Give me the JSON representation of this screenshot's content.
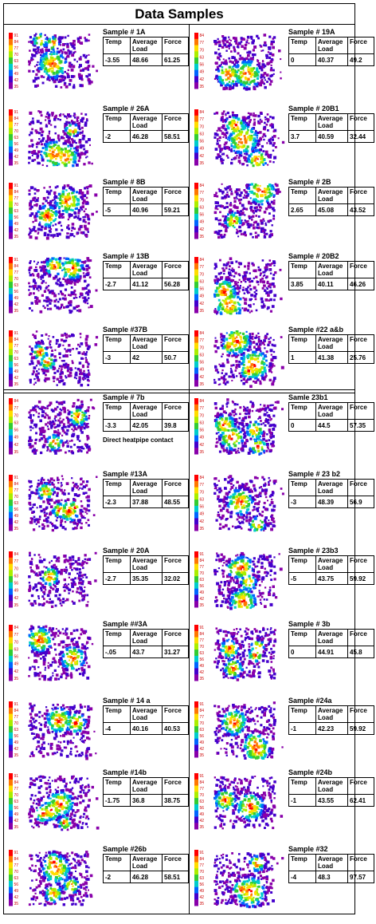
{
  "title": "Data Samples",
  "headers": {
    "temp": "Temp",
    "load": "Average Load",
    "force": "Force"
  },
  "samples": [
    {
      "name": "Sample # 1A",
      "temp": "-3.55",
      "load": "48.66",
      "force": "61.25",
      "scale": [
        "91",
        "84",
        "77",
        "70",
        "63",
        "56",
        "49",
        "42",
        "35"
      ]
    },
    {
      "name": "Sample # 19A",
      "temp": "0",
      "load": "40.37",
      "force": "49.2",
      "scale": [
        "84",
        "77",
        "70",
        "63",
        "56",
        "49",
        "42",
        "35"
      ]
    },
    {
      "name": "Sample # 26A",
      "temp": "-2",
      "load": "46.28",
      "force": "58.51",
      "scale": [
        "91",
        "84",
        "77",
        "70",
        "63",
        "56",
        "49",
        "42",
        "35"
      ]
    },
    {
      "name": "Sample # 20B1",
      "temp": "3.7",
      "load": "40.59",
      "force": "32.44",
      "scale": [
        "84",
        "77",
        "70",
        "63",
        "56",
        "49",
        "42",
        "35"
      ]
    },
    {
      "name": "Sample # 8B",
      "temp": "-5",
      "load": "40.96",
      "force": "59.21",
      "scale": [
        "91",
        "84",
        "77",
        "70",
        "63",
        "56",
        "49",
        "42",
        "35"
      ]
    },
    {
      "name": "Sample # 2B",
      "temp": "2.65",
      "load": "45.08",
      "force": "43.52",
      "scale": [
        "84",
        "77",
        "70",
        "63",
        "56",
        "49",
        "42",
        "35"
      ]
    },
    {
      "name": "Sample # 13B",
      "temp": "-2.7",
      "load": "41.12",
      "force": "56.28",
      "scale": [
        "91",
        "84",
        "77",
        "70",
        "63",
        "56",
        "49",
        "42",
        "35"
      ]
    },
    {
      "name": "Sample # 20B2",
      "temp": "3.85",
      "load": "40.11",
      "force": "46.26",
      "scale": [
        "84",
        "77",
        "70",
        "63",
        "56",
        "49",
        "42",
        "35"
      ]
    },
    {
      "name": "Sample #37B",
      "temp": "-3",
      "load": "42",
      "force": "50.7",
      "scale": [
        "91",
        "84",
        "77",
        "70",
        "63",
        "56",
        "49",
        "42",
        "35"
      ]
    },
    {
      "name": "Sample #22 a&b",
      "temp": "1",
      "load": "41.38",
      "force": "25.76",
      "scale": [
        "84",
        "77",
        "70",
        "63",
        "56",
        "49",
        "42",
        "35"
      ]
    },
    {
      "name": "Sample # 7b",
      "temp": "-3.3",
      "load": "42.05",
      "force": "39.8",
      "scale": [
        "84",
        "77",
        "70",
        "63",
        "56",
        "49",
        "42",
        "35"
      ],
      "note": "Direct heatpipe contact"
    },
    {
      "name": "Samle 23b1",
      "temp": "0",
      "load": "44.5",
      "force": "57.35",
      "scale": [
        "84",
        "77",
        "70",
        "63",
        "56",
        "49",
        "42",
        "35"
      ]
    },
    {
      "name": "Sample #13A",
      "temp": "-2.3",
      "load": "37.88",
      "force": "48.55",
      "scale": [
        "91",
        "84",
        "77",
        "70",
        "63",
        "56",
        "49",
        "42",
        "35"
      ]
    },
    {
      "name": "Sample # 23 b2",
      "temp": "-3",
      "load": "48.39",
      "force": "56.9",
      "scale": [
        "84",
        "77",
        "70",
        "63",
        "56",
        "49",
        "42",
        "35"
      ]
    },
    {
      "name": "Sample # 20A",
      "temp": "-2.7",
      "load": "35.35",
      "force": "32.02",
      "scale": [
        "84",
        "77",
        "70",
        "63",
        "56",
        "49",
        "42",
        "35"
      ]
    },
    {
      "name": "Sample # 23b3",
      "temp": "-5",
      "load": "43.75",
      "force": "59.92",
      "scale": [
        "91",
        "84",
        "77",
        "70",
        "63",
        "56",
        "49",
        "42",
        "35"
      ]
    },
    {
      "name": "Sample ##3A",
      "temp": "-.05",
      "load": "43.7",
      "force": "31.27",
      "scale": [
        "84",
        "77",
        "70",
        "63",
        "56",
        "49",
        "42",
        "35"
      ]
    },
    {
      "name": "Sample # 3b",
      "temp": "0",
      "load": "44.91",
      "force": "45.8",
      "scale": [
        "91",
        "84",
        "77",
        "70",
        "63",
        "56",
        "49",
        "42",
        "35"
      ]
    },
    {
      "name": "Sample # 14 a",
      "temp": "-4",
      "load": "40.16",
      "force": "40.53",
      "scale": [
        "91",
        "84",
        "77",
        "70",
        "63",
        "56",
        "49",
        "42",
        "35"
      ]
    },
    {
      "name": "Sample #24a",
      "temp": "-1",
      "load": "42.23",
      "force": "59.92",
      "scale": [
        "91",
        "84",
        "77",
        "70",
        "63",
        "56",
        "49",
        "42",
        "35"
      ]
    },
    {
      "name": "Sample #14b",
      "temp": "-1.75",
      "load": "36.8",
      "force": "38.75",
      "scale": [
        "91",
        "84",
        "77",
        "70",
        "63",
        "56",
        "49",
        "42",
        "35"
      ]
    },
    {
      "name": "Sample #24b",
      "temp": "-1",
      "load": "43.55",
      "force": "62.41",
      "scale": [
        "91",
        "84",
        "77",
        "70",
        "63",
        "56",
        "49",
        "42",
        "35"
      ]
    },
    {
      "name": "Sample #26b",
      "temp": "-2",
      "load": "46.28",
      "force": "58.51",
      "scale": [
        "91",
        "84",
        "77",
        "70",
        "63",
        "56",
        "49",
        "42",
        "35"
      ]
    },
    {
      "name": "Sample #32",
      "temp": "-4",
      "load": "48.3",
      "force": "97.57",
      "scale": [
        "91",
        "84",
        "77",
        "70",
        "63",
        "56",
        "49",
        "42",
        "35"
      ]
    }
  ],
  "colors": {
    "scale": [
      "#ff0000",
      "#ff7700",
      "#ffdd00",
      "#aaee00",
      "#33cc33",
      "#00cccc",
      "#0066ff",
      "#4400cc",
      "#8800aa"
    ],
    "scale_text": "#cc0000"
  }
}
